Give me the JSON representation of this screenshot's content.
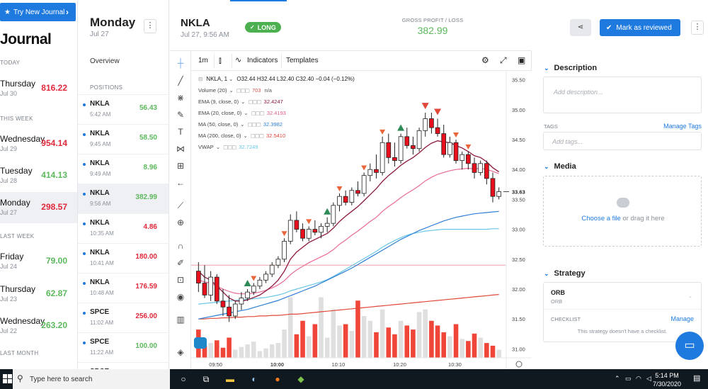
{
  "journal": {
    "promo_label": "Try New Journal",
    "title": "Journal",
    "sections": {
      "today": "TODAY",
      "this_week": "THIS WEEK",
      "last_week": "LAST WEEK",
      "last_month": "LAST MONTH"
    },
    "days": [
      {
        "name": "Thursday",
        "date": "Jul 30",
        "value": "816.22",
        "sign": "neg"
      },
      {
        "name": "Wednesday",
        "date": "Jul 29",
        "value": "954.14",
        "sign": "neg"
      },
      {
        "name": "Tuesday",
        "date": "Jul 28",
        "value": "414.13",
        "sign": "pos"
      },
      {
        "name": "Monday",
        "date": "Jul 27",
        "value": "298.57",
        "sign": "neg"
      },
      {
        "name": "Friday",
        "date": "Jul 24",
        "value": "79.00",
        "sign": "pos"
      },
      {
        "name": "Thursday",
        "date": "Jul 23",
        "value": "62.87",
        "sign": "pos"
      },
      {
        "name": "Wednesday",
        "date": "Jul 22",
        "value": "263.20",
        "sign": "pos"
      }
    ]
  },
  "day": {
    "title": "Monday",
    "date": "Jul 27",
    "overview_label": "Overview",
    "positions_label": "POSITIONS",
    "trades": [
      {
        "symbol": "NKLA",
        "time": "5:42 AM",
        "value": "56.43",
        "sign": "pos"
      },
      {
        "symbol": "NKLA",
        "time": "9:45 AM",
        "value": "58.50",
        "sign": "pos"
      },
      {
        "symbol": "NKLA",
        "time": "9:49 AM",
        "value": "8.96",
        "sign": "pos"
      },
      {
        "symbol": "NKLA",
        "time": "9:56 AM",
        "value": "382.99",
        "sign": "pos"
      },
      {
        "symbol": "NKLA",
        "time": "10:35 AM",
        "value": "4.86",
        "sign": "neg"
      },
      {
        "symbol": "NKLA",
        "time": "10:41 AM",
        "value": "180.00",
        "sign": "neg"
      },
      {
        "symbol": "NKLA",
        "time": "10:48 AM",
        "value": "176.59",
        "sign": "neg"
      },
      {
        "symbol": "SPCE",
        "time": "11:02 AM",
        "value": "256.00",
        "sign": "neg"
      },
      {
        "symbol": "SPCE",
        "time": "11:22 AM",
        "value": "100.00",
        "sign": "pos"
      },
      {
        "symbol": "SPCE",
        "time": "",
        "value": "",
        "sign": "pos"
      }
    ]
  },
  "trade": {
    "symbol": "NKLA",
    "datetime": "Jul 27, 9:56 AM",
    "side": "LONG",
    "gross_label": "GROSS PROFIT / LOSS",
    "gross_value": "382.99",
    "review_label": "Mark as reviewed"
  },
  "chart_toolbar": {
    "interval": "1m",
    "indicators": "Indicators",
    "templates": "Templates"
  },
  "legend": {
    "symbol": "NKLA, 1",
    "ohlc": "O32.44 H32.44 L32.40 C32.40 −0.04 (−0.12%)",
    "indicators": [
      {
        "name": "Volume (20)",
        "value": "703",
        "value2": "n/a",
        "color": "#d9534f"
      },
      {
        "name": "EMA (9, close, 0)",
        "value": "32.4247",
        "color": "#8b1a3a"
      },
      {
        "name": "EMA (20, close, 0)",
        "value": "32.4193",
        "color": "#e05b8a"
      },
      {
        "name": "MA (50, close, 0)",
        "value": "32.3982",
        "color": "#2f7fd6"
      },
      {
        "name": "MA (200, close, 0)",
        "value": "32.5410",
        "color": "#e0483a"
      },
      {
        "name": "VWAP",
        "value": "32.7249",
        "color": "#69c7e6"
      }
    ]
  },
  "chart_data": {
    "type": "candlestick",
    "x_ticks": [
      "09:50",
      "10:00",
      "10:10",
      "10:20",
      "10:30"
    ],
    "y_ticks": [
      "35.50",
      "35.00",
      "34.50",
      "34.00",
      "33.50",
      "33.00",
      "32.50",
      "32.00",
      "31.50",
      "31.00"
    ],
    "ylim": [
      30.85,
      35.65
    ],
    "last_price": "33.63",
    "candles": [
      [
        32.3,
        32.45,
        31.95,
        32.1
      ],
      [
        32.1,
        32.4,
        31.85,
        31.9
      ],
      [
        31.9,
        32.3,
        31.8,
        32.2
      ],
      [
        32.2,
        32.25,
        31.75,
        31.8
      ],
      [
        31.8,
        32.0,
        31.55,
        31.7
      ],
      [
        31.7,
        31.9,
        31.45,
        31.55
      ],
      [
        31.55,
        31.8,
        31.5,
        31.75
      ],
      [
        31.75,
        31.95,
        31.65,
        31.85
      ],
      [
        31.85,
        32.0,
        31.8,
        31.95
      ],
      [
        31.95,
        32.1,
        31.9,
        32.05
      ],
      [
        32.05,
        32.2,
        32.0,
        32.15
      ],
      [
        32.15,
        32.3,
        32.1,
        32.25
      ],
      [
        32.25,
        32.45,
        32.2,
        32.4
      ],
      [
        32.4,
        32.55,
        32.35,
        32.5
      ],
      [
        32.5,
        32.85,
        32.45,
        32.8
      ],
      [
        32.8,
        33.25,
        32.75,
        33.15
      ],
      [
        33.15,
        33.3,
        32.95,
        33.0
      ],
      [
        33.0,
        33.1,
        32.8,
        32.85
      ],
      [
        32.85,
        33.05,
        32.8,
        33.0
      ],
      [
        33.0,
        33.15,
        32.9,
        32.95
      ],
      [
        32.95,
        33.1,
        32.85,
        33.05
      ],
      [
        33.05,
        33.2,
        32.95,
        33.1
      ],
      [
        33.1,
        33.45,
        33.05,
        33.4
      ],
      [
        33.4,
        33.6,
        33.3,
        33.55
      ],
      [
        33.55,
        33.65,
        33.4,
        33.45
      ],
      [
        33.45,
        33.7,
        33.4,
        33.65
      ],
      [
        33.65,
        33.8,
        33.55,
        33.6
      ],
      [
        33.6,
        33.95,
        33.55,
        33.9
      ],
      [
        33.9,
        34.1,
        33.8,
        34.0
      ],
      [
        34.0,
        34.25,
        33.85,
        33.95
      ],
      [
        33.95,
        34.55,
        33.9,
        34.45
      ],
      [
        34.45,
        34.6,
        34.1,
        34.2
      ],
      [
        34.2,
        34.45,
        34.05,
        34.15
      ],
      [
        34.15,
        34.6,
        34.1,
        34.55
      ],
      [
        34.55,
        34.7,
        34.35,
        34.4
      ],
      [
        34.4,
        34.55,
        34.25,
        34.35
      ],
      [
        34.35,
        34.7,
        34.3,
        34.65
      ],
      [
        34.65,
        34.95,
        34.55,
        34.85
      ],
      [
        34.85,
        34.95,
        34.6,
        34.7
      ],
      [
        34.7,
        34.85,
        34.55,
        34.6
      ],
      [
        34.6,
        34.75,
        34.2,
        34.25
      ],
      [
        34.25,
        34.55,
        34.2,
        34.45
      ],
      [
        34.45,
        34.5,
        34.1,
        34.15
      ],
      [
        34.15,
        34.3,
        34.0,
        34.25
      ],
      [
        34.25,
        34.3,
        34.0,
        34.1
      ],
      [
        34.1,
        34.2,
        33.85,
        33.95
      ],
      [
        33.95,
        34.15,
        33.9,
        34.1
      ],
      [
        34.1,
        34.15,
        33.75,
        33.85
      ],
      [
        33.85,
        33.95,
        33.45,
        33.55
      ],
      [
        33.55,
        33.7,
        33.5,
        33.63
      ]
    ],
    "volume": [
      0.42,
      0.18,
      0.22,
      0.26,
      0.15,
      0.3,
      0.12,
      0.16,
      0.2,
      0.24,
      0.1,
      0.14,
      0.2,
      0.22,
      0.42,
      0.9,
      0.35,
      0.55,
      0.32,
      0.5,
      0.9,
      0.3,
      0.72,
      0.48,
      0.5,
      0.4,
      0.85,
      0.62,
      0.55,
      0.38,
      0.72,
      0.45,
      0.35,
      0.55,
      0.48,
      0.42,
      0.68,
      0.72,
      0.55,
      0.48,
      0.38,
      0.32,
      0.5,
      0.28,
      0.25,
      0.36,
      0.3,
      0.22,
      0.18,
      0.12
    ],
    "ema9": [
      32.3,
      32.2,
      32.15,
      32.05,
      31.95,
      31.85,
      31.8,
      31.8,
      31.82,
      31.86,
      31.9,
      31.97,
      32.05,
      32.15,
      32.3,
      32.5,
      32.62,
      32.7,
      32.78,
      32.83,
      32.88,
      32.93,
      33.02,
      33.13,
      33.22,
      33.3,
      33.38,
      33.48,
      33.58,
      33.68,
      33.8,
      33.9,
      33.98,
      34.07,
      34.14,
      34.2,
      34.28,
      34.37,
      34.44,
      34.48,
      34.46,
      34.45,
      34.4,
      34.36,
      34.3,
      34.23,
      34.2,
      34.13,
      34.03,
      33.96
    ],
    "ema20": [
      32.15,
      32.12,
      32.1,
      32.05,
      32.0,
      31.96,
      31.93,
      31.92,
      31.92,
      31.93,
      31.95,
      31.98,
      32.02,
      32.07,
      32.14,
      32.24,
      32.32,
      32.38,
      32.44,
      32.49,
      32.54,
      32.59,
      32.66,
      32.75,
      32.82,
      32.9,
      32.97,
      33.05,
      33.13,
      33.2,
      33.3,
      33.38,
      33.45,
      33.53,
      33.6,
      33.66,
      33.73,
      33.81,
      33.87,
      33.92,
      33.95,
      33.98,
      34.0,
      34.01,
      34.02,
      34.01,
      34.02,
      34.0,
      33.97,
      33.93
    ],
    "ma50": [
      31.5,
      31.52,
      31.54,
      31.56,
      31.58,
      31.6,
      31.62,
      31.64,
      31.66,
      31.69,
      31.72,
      31.75,
      31.78,
      31.81,
      31.85,
      31.89,
      31.93,
      31.97,
      32.01,
      32.05,
      32.1,
      32.15,
      32.2,
      32.25,
      32.3,
      32.35,
      32.41,
      32.47,
      32.53,
      32.59,
      32.65,
      32.71,
      32.77,
      32.83,
      32.88,
      32.93,
      32.98,
      33.02,
      33.06,
      33.1,
      33.14,
      33.17,
      33.2,
      33.22,
      33.24,
      33.26,
      33.27,
      33.28,
      33.29,
      33.3
    ],
    "ma200": [
      31.5,
      31.5,
      31.51,
      31.51,
      31.52,
      31.52,
      31.53,
      31.53,
      31.54,
      31.54,
      31.55,
      31.55,
      31.56,
      31.56,
      31.57,
      31.58,
      31.58,
      31.59,
      31.6,
      31.61,
      31.62,
      31.63,
      31.64,
      31.65,
      31.66,
      31.67,
      31.68,
      31.69,
      31.7,
      31.71,
      31.72,
      31.73,
      31.74,
      31.75,
      31.76,
      31.77,
      31.78,
      31.79,
      31.8,
      31.81,
      31.82,
      31.83,
      31.84,
      31.85,
      31.86,
      31.87,
      31.88,
      31.89,
      31.9,
      31.91
    ],
    "vwap": [
      31.75,
      31.76,
      31.77,
      31.78,
      31.79,
      31.8,
      31.81,
      31.82,
      31.83,
      31.84,
      31.85,
      31.86,
      31.88,
      31.9,
      31.93,
      31.97,
      32.0,
      32.03,
      32.06,
      32.09,
      32.12,
      32.16,
      32.21,
      32.27,
      32.33,
      32.39,
      32.45,
      32.51,
      32.57,
      32.63,
      32.7,
      32.76,
      32.81,
      32.86,
      32.9,
      32.93,
      32.95,
      32.97,
      32.98,
      32.99,
      33.0,
      33.0,
      33.0,
      33.0,
      33.0,
      33.0,
      33.0,
      33.0,
      33.01,
      33.01
    ],
    "hline": 32.4,
    "buy_markers": [
      8,
      21,
      33
    ],
    "sell_markers": [
      37,
      39
    ]
  },
  "right": {
    "description_label": "Description",
    "description_placeholder": "Add description...",
    "tags_label": "TAGS",
    "manage_tags": "Manage Tags",
    "tags_placeholder": "Add tags...",
    "media_label": "Media",
    "choose_file": "Choose a file",
    "drag_text": "or drag it here",
    "strategy_label": "Strategy",
    "strategy_name": "ORB",
    "strategy_sub": "ORB",
    "checklist_label": "CHECKLIST",
    "manage": "Manage",
    "no_checklist": "This strategy doesn't have a checklist."
  },
  "taskbar": {
    "search_placeholder": "Type here to search",
    "time": "5:14 PM",
    "date": "7/30/2020"
  },
  "colors": {
    "accent": "#1f7ae0",
    "positive": "#5cb85c",
    "negative": "#e0283a"
  }
}
